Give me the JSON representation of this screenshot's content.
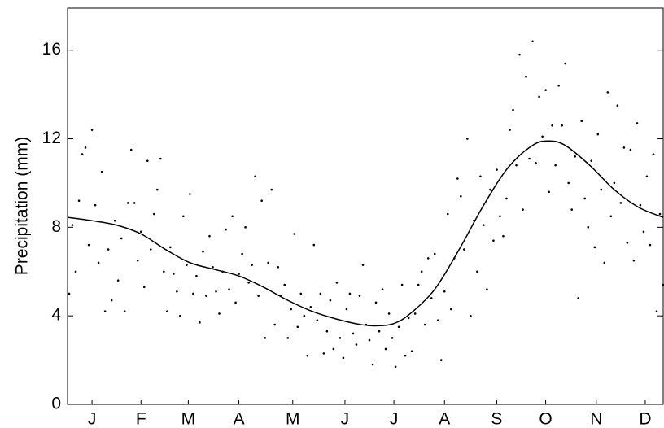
{
  "chart_data": {
    "type": "scatter",
    "y_label": "Precipitation (mm)",
    "xlim": [
      0,
      365
    ],
    "ylim": [
      0,
      17.9
    ],
    "xticks": [
      {
        "value": 15,
        "label": "J"
      },
      {
        "value": 45,
        "label": "F"
      },
      {
        "value": 74,
        "label": "M"
      },
      {
        "value": 105,
        "label": "A"
      },
      {
        "value": 138,
        "label": "M"
      },
      {
        "value": 170,
        "label": "J"
      },
      {
        "value": 200,
        "label": "J"
      },
      {
        "value": 231,
        "label": "A"
      },
      {
        "value": 263,
        "label": "S"
      },
      {
        "value": 293,
        "label": "O"
      },
      {
        "value": 324,
        "label": "N"
      },
      {
        "value": 354,
        "label": "D"
      }
    ],
    "yticks": [
      0,
      4,
      8,
      12,
      16
    ],
    "series": [
      {
        "style": "points",
        "color": "#000000",
        "x": [
          1,
          3,
          5,
          7,
          9,
          11,
          13,
          15,
          17,
          19,
          21,
          23,
          25,
          27,
          29,
          31,
          33,
          35,
          37,
          39,
          41,
          43,
          45,
          47,
          49,
          51,
          53,
          55,
          57,
          59,
          61,
          63,
          65,
          67,
          69,
          71,
          73,
          75,
          77,
          79,
          81,
          83,
          85,
          87,
          89,
          91,
          93,
          95,
          97,
          99,
          101,
          103,
          105,
          107,
          109,
          111,
          113,
          115,
          117,
          119,
          121,
          123,
          125,
          127,
          129,
          131,
          133,
          135,
          137,
          139,
          141,
          143,
          145,
          147,
          149,
          151,
          153,
          155,
          157,
          159,
          161,
          163,
          165,
          167,
          169,
          171,
          173,
          175,
          177,
          179,
          181,
          183,
          185,
          187,
          189,
          191,
          193,
          195,
          197,
          199,
          201,
          203,
          205,
          207,
          209,
          211,
          213,
          215,
          217,
          219,
          221,
          223,
          225,
          227,
          229,
          231,
          233,
          235,
          237,
          239,
          241,
          243,
          245,
          247,
          249,
          251,
          253,
          255,
          257,
          259,
          261,
          263,
          265,
          267,
          269,
          271,
          273,
          275,
          277,
          279,
          281,
          283,
          285,
          287,
          289,
          291,
          293,
          295,
          297,
          299,
          301,
          303,
          305,
          307,
          309,
          311,
          313,
          315,
          317,
          319,
          321,
          323,
          325,
          327,
          329,
          331,
          333,
          335,
          337,
          339,
          341,
          343,
          345,
          347,
          349,
          351,
          353,
          355,
          357,
          359,
          361,
          363,
          365
        ],
        "values": [
          5.0,
          8.1,
          6.0,
          9.2,
          11.3,
          11.6,
          7.2,
          12.4,
          9.0,
          6.4,
          10.5,
          4.2,
          7.0,
          4.7,
          8.3,
          5.6,
          7.5,
          4.2,
          9.1,
          11.5,
          9.1,
          6.5,
          7.8,
          5.3,
          11.0,
          7.0,
          8.6,
          9.7,
          11.1,
          6.0,
          4.2,
          7.1,
          5.9,
          5.1,
          4.0,
          8.5,
          6.3,
          9.5,
          5.0,
          5.8,
          3.7,
          6.9,
          4.9,
          7.6,
          6.2,
          5.1,
          4.1,
          6.0,
          7.9,
          5.2,
          8.5,
          4.6,
          5.9,
          6.8,
          8.0,
          5.5,
          6.3,
          10.3,
          4.9,
          9.2,
          3.0,
          6.4,
          9.7,
          3.6,
          6.2,
          4.9,
          5.4,
          3.0,
          4.3,
          7.7,
          3.5,
          5.0,
          4.0,
          2.2,
          4.4,
          7.2,
          3.8,
          5.0,
          2.3,
          3.3,
          4.7,
          2.5,
          5.5,
          3.0,
          2.1,
          4.3,
          5.0,
          3.2,
          2.7,
          4.9,
          6.3,
          3.6,
          2.9,
          1.8,
          4.6,
          3.3,
          5.2,
          2.5,
          4.1,
          3.0,
          1.7,
          3.5,
          5.4,
          2.2,
          3.9,
          2.4,
          4.1,
          5.4,
          6.0,
          3.6,
          6.6,
          4.8,
          6.8,
          3.8,
          2.0,
          5.1,
          8.6,
          4.3,
          6.6,
          10.2,
          9.4,
          7.0,
          12.0,
          4.0,
          8.3,
          6.0,
          10.3,
          8.1,
          5.2,
          9.7,
          7.4,
          10.6,
          8.5,
          7.6,
          9.3,
          12.4,
          13.3,
          10.8,
          15.8,
          8.8,
          14.8,
          11.1,
          16.4,
          10.9,
          13.9,
          12.1,
          14.2,
          9.6,
          12.6,
          10.8,
          14.4,
          12.6,
          15.4,
          10.0,
          8.8,
          11.2,
          4.8,
          12.8,
          9.3,
          8.0,
          11.0,
          7.1,
          12.2,
          9.7,
          6.4,
          14.1,
          8.5,
          10.0,
          13.5,
          9.1,
          11.6,
          7.3,
          11.5,
          6.5,
          12.7,
          9.0,
          7.8,
          10.3,
          7.2,
          11.3,
          4.2,
          8.6,
          5.4
        ]
      },
      {
        "style": "line",
        "color": "#000000",
        "x": [
          0,
          15,
          30,
          45,
          60,
          75,
          90,
          105,
          120,
          135,
          150,
          165,
          180,
          190,
          200,
          210,
          225,
          240,
          255,
          270,
          285,
          295,
          305,
          320,
          335,
          350,
          365
        ],
        "values": [
          8.45,
          8.3,
          8.1,
          7.7,
          7.0,
          6.4,
          6.1,
          5.8,
          5.3,
          4.7,
          4.2,
          3.85,
          3.6,
          3.55,
          3.65,
          4.1,
          5.2,
          7.0,
          9.0,
          10.7,
          11.7,
          11.9,
          11.7,
          10.8,
          9.7,
          8.9,
          8.45
        ]
      }
    ]
  }
}
